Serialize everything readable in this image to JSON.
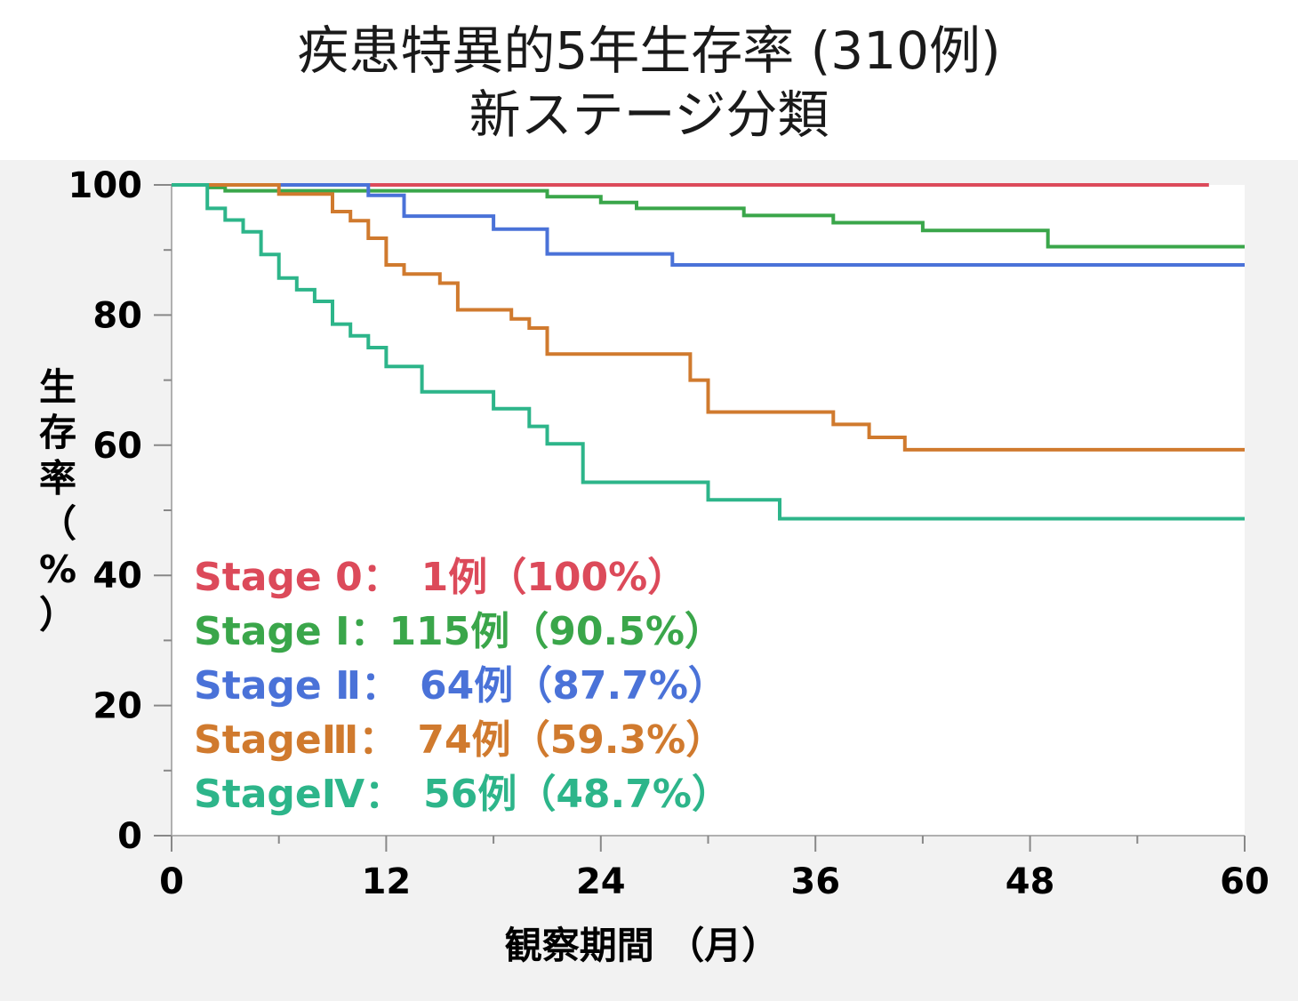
{
  "title": {
    "line1": "疾患特異的5年生存率 (310例)",
    "line2": "新ステージ分類"
  },
  "chart_data": {
    "type": "line",
    "step": true,
    "xlabel": "観察期間 （月）",
    "ylabel": "生存率（%）",
    "xlim": [
      0,
      60
    ],
    "ylim": [
      0,
      100
    ],
    "xticks": [
      0,
      12,
      24,
      36,
      48,
      60
    ],
    "xminor_ticks": [
      6,
      18,
      30,
      42,
      54
    ],
    "yticks": [
      0,
      20,
      40,
      60,
      80,
      100
    ],
    "yminor_ticks": [
      10,
      30,
      50,
      70,
      90
    ],
    "grid": false,
    "legend_position": "bottom-left",
    "series": [
      {
        "name": "Stage 0",
        "legend": "Stage 0：　1例（100%）",
        "color": "#dc4a5a",
        "points": [
          [
            0,
            100
          ],
          [
            58,
            100
          ]
        ]
      },
      {
        "name": "Stage Ⅰ",
        "legend": "Stage Ⅰ：115例（90.5%）",
        "color": "#3aa64a",
        "points": [
          [
            0,
            100
          ],
          [
            2.1,
            100
          ],
          [
            2.1,
            99.6
          ],
          [
            3,
            99.6
          ],
          [
            3,
            99.1
          ],
          [
            21,
            99.1
          ],
          [
            21,
            98.2
          ],
          [
            24,
            98.2
          ],
          [
            24,
            97.3
          ],
          [
            26,
            97.3
          ],
          [
            26,
            96.4
          ],
          [
            32,
            96.4
          ],
          [
            32,
            95.3
          ],
          [
            37,
            95.3
          ],
          [
            37,
            94.2
          ],
          [
            42,
            94.2
          ],
          [
            42,
            93
          ],
          [
            49,
            93
          ],
          [
            49,
            90.5
          ],
          [
            60,
            90.5
          ]
        ]
      },
      {
        "name": "Stage Ⅱ",
        "legend": "Stage Ⅱ：　64例（87.7%）",
        "color": "#4a72d8",
        "points": [
          [
            0,
            100
          ],
          [
            11,
            100
          ],
          [
            11,
            98.4
          ],
          [
            13,
            98.4
          ],
          [
            13,
            95.2
          ],
          [
            18,
            95.2
          ],
          [
            18,
            93.2
          ],
          [
            21,
            93.2
          ],
          [
            21,
            89.4
          ],
          [
            28,
            89.4
          ],
          [
            28,
            87.7
          ],
          [
            60,
            87.7
          ]
        ]
      },
      {
        "name": "Stage Ⅲ",
        "legend": "StageⅢ：　74例（59.3%）",
        "color": "#d07a2e",
        "points": [
          [
            0,
            100
          ],
          [
            6,
            100
          ],
          [
            6,
            98.6
          ],
          [
            9,
            98.6
          ],
          [
            9,
            95.9
          ],
          [
            10,
            95.9
          ],
          [
            10,
            94.5
          ],
          [
            11,
            94.5
          ],
          [
            11,
            91.8
          ],
          [
            12,
            91.8
          ],
          [
            12,
            87.7
          ],
          [
            13,
            87.7
          ],
          [
            13,
            86.3
          ],
          [
            15,
            86.3
          ],
          [
            15,
            84.9
          ],
          [
            16,
            84.9
          ],
          [
            16,
            80.8
          ],
          [
            19,
            80.8
          ],
          [
            19,
            79.4
          ],
          [
            20,
            79.4
          ],
          [
            20,
            78
          ],
          [
            21,
            78
          ],
          [
            21,
            74
          ],
          [
            29,
            74
          ],
          [
            29,
            70
          ],
          [
            30,
            70
          ],
          [
            30,
            65.1
          ],
          [
            37,
            65.1
          ],
          [
            37,
            63.2
          ],
          [
            39,
            63.2
          ],
          [
            39,
            61.2
          ],
          [
            41,
            61.2
          ],
          [
            41,
            59.3
          ],
          [
            60,
            59.3
          ]
        ]
      },
      {
        "name": "Stage Ⅳ",
        "legend": "StageⅣ：　56例（48.7%）",
        "color": "#2db58a",
        "points": [
          [
            0,
            100
          ],
          [
            2,
            100
          ],
          [
            2,
            96.4
          ],
          [
            3,
            96.4
          ],
          [
            3,
            94.6
          ],
          [
            4,
            94.6
          ],
          [
            4,
            92.8
          ],
          [
            5,
            92.8
          ],
          [
            5,
            89.3
          ],
          [
            6,
            89.3
          ],
          [
            6,
            85.7
          ],
          [
            7,
            85.7
          ],
          [
            7,
            83.9
          ],
          [
            8,
            83.9
          ],
          [
            8,
            82.1
          ],
          [
            9,
            82.1
          ],
          [
            9,
            78.6
          ],
          [
            10,
            78.6
          ],
          [
            10,
            76.8
          ],
          [
            11,
            76.8
          ],
          [
            11,
            75
          ],
          [
            12,
            75
          ],
          [
            12,
            72.1
          ],
          [
            14,
            72.1
          ],
          [
            14,
            68.2
          ],
          [
            18,
            68.2
          ],
          [
            18,
            65.6
          ],
          [
            20,
            65.6
          ],
          [
            20,
            62.9
          ],
          [
            21,
            62.9
          ],
          [
            21,
            60.2
          ],
          [
            23,
            60.2
          ],
          [
            23,
            54.3
          ],
          [
            30,
            54.3
          ],
          [
            30,
            51.6
          ],
          [
            34,
            51.6
          ],
          [
            34,
            48.7
          ],
          [
            60,
            48.7
          ]
        ]
      }
    ]
  }
}
